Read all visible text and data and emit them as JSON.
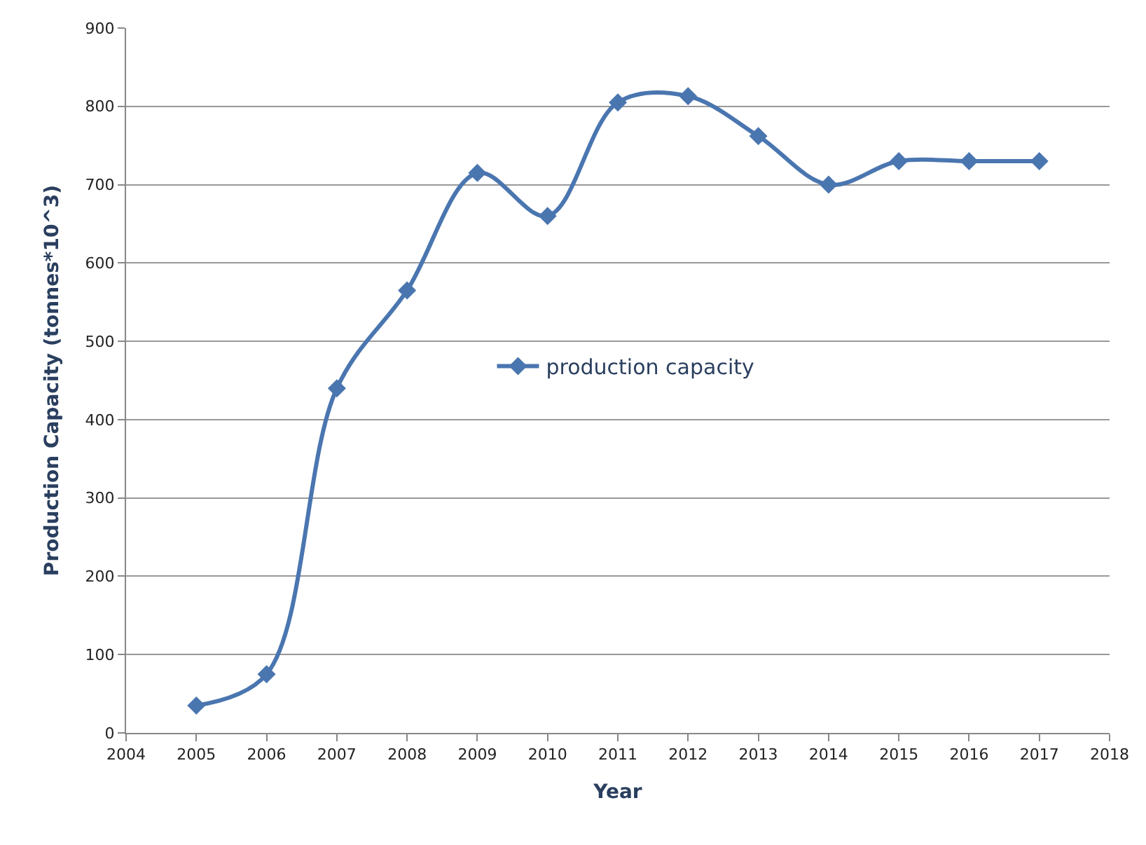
{
  "chart_data": {
    "type": "line",
    "xlabel": "Year",
    "ylabel": "Production Capacity (tonnes*10^3)",
    "x": [
      2005,
      2006,
      2007,
      2008,
      2009,
      2010,
      2011,
      2012,
      2013,
      2014,
      2015,
      2016,
      2017
    ],
    "series": [
      {
        "name": "production capacity",
        "color": "#4a76b0",
        "values": [
          35,
          75,
          440,
          565,
          715,
          660,
          805,
          813,
          762,
          700,
          730,
          730,
          730
        ]
      }
    ],
    "xlim": [
      2004,
      2018
    ],
    "xticks": [
      2004,
      2005,
      2006,
      2007,
      2008,
      2009,
      2010,
      2011,
      2012,
      2013,
      2014,
      2015,
      2016,
      2017,
      2018
    ],
    "ylim": [
      0,
      900
    ],
    "yticks": [
      0,
      100,
      200,
      300,
      400,
      500,
      600,
      700,
      800,
      900
    ],
    "grid": "y",
    "legend": "center",
    "marker": "diamond",
    "line_style": "solid"
  }
}
